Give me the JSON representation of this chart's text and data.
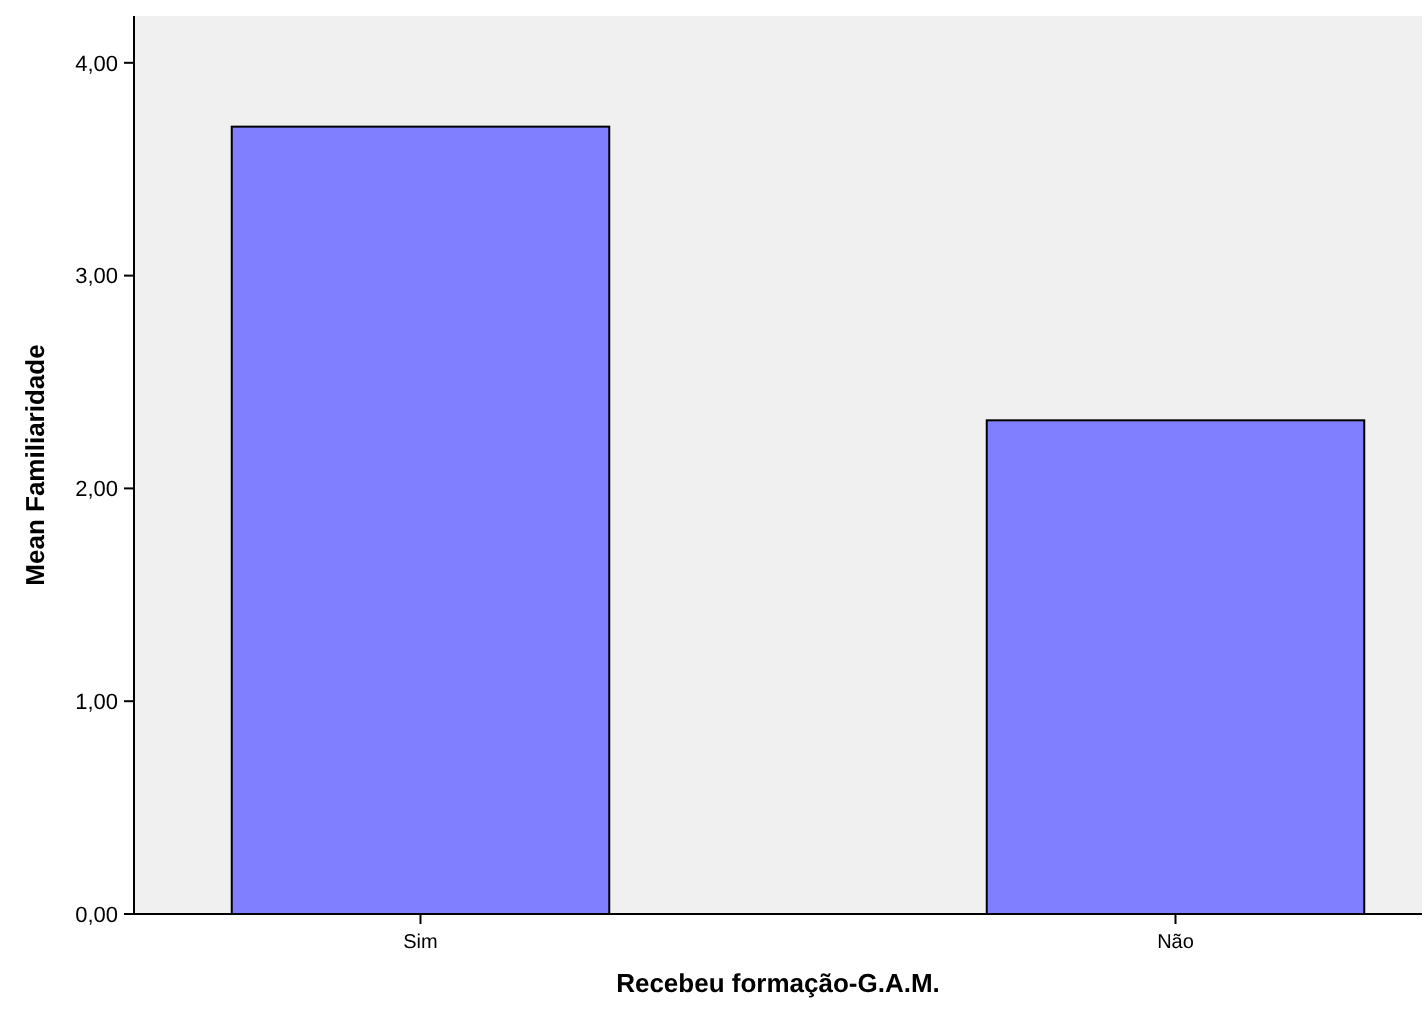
{
  "chart_data": {
    "type": "bar",
    "xlabel": "Recebeu formação-G.A.M.",
    "ylabel": "Mean Familiaridade",
    "categories": [
      "Sim",
      "Não"
    ],
    "values": [
      3.7,
      2.32
    ],
    "color": "#7f7fff",
    "ylim": [
      0,
      4.22
    ],
    "yticks": [
      {
        "value": 0,
        "label": "0,00"
      },
      {
        "value": 1,
        "label": "1,00"
      },
      {
        "value": 2,
        "label": "2,00"
      },
      {
        "value": 3,
        "label": "3,00"
      },
      {
        "value": 4,
        "label": "4,00"
      }
    ],
    "grid": false
  }
}
